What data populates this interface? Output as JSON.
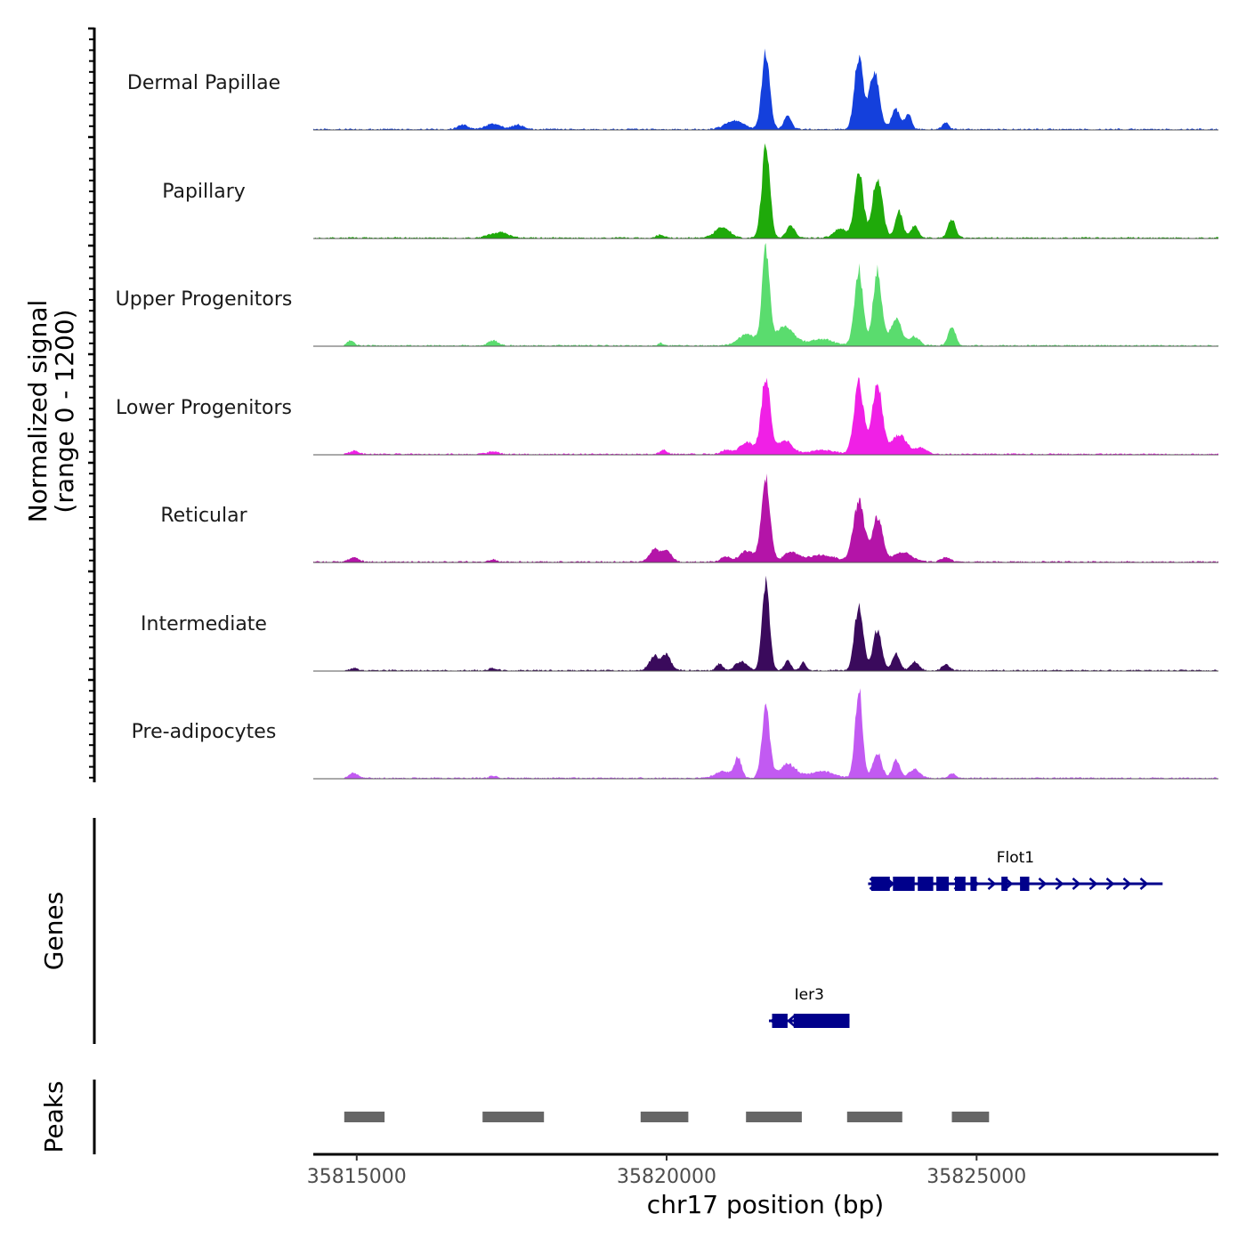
{
  "chart_data": {
    "type": "area",
    "chrom": "chr17",
    "xlim": [
      35814300,
      35828900
    ],
    "ylim": [
      0,
      1200
    ],
    "xlabel": "chr17 position (bp)",
    "ylabel_line1": "Normalized signal",
    "ylabel_line2": "(range 0 - 1200)",
    "x_ticks": [
      35815000,
      35820000,
      35825000
    ],
    "x_tick_labels": [
      "35815000",
      "35820000",
      "35825000"
    ],
    "baseline_noise": 18,
    "series": [
      {
        "name": "Dermal Papillae",
        "color": "#1440DC",
        "start": 35814300,
        "peaks": [
          {
            "center": 35816700,
            "width": 80,
            "height": 60
          },
          {
            "center": 35817200,
            "width": 120,
            "height": 70
          },
          {
            "center": 35817600,
            "width": 100,
            "height": 55
          },
          {
            "center": 35821100,
            "width": 150,
            "height": 110
          },
          {
            "center": 35821600,
            "width": 65,
            "height": 1000
          },
          {
            "center": 35821950,
            "width": 60,
            "height": 180
          },
          {
            "center": 35823100,
            "width": 70,
            "height": 930
          },
          {
            "center": 35823350,
            "width": 80,
            "height": 740
          },
          {
            "center": 35823700,
            "width": 70,
            "height": 260
          },
          {
            "center": 35823900,
            "width": 50,
            "height": 200
          },
          {
            "center": 35824500,
            "width": 50,
            "height": 90
          }
        ]
      },
      {
        "name": "Papillary",
        "color": "#1FAA0A",
        "start": 35814300,
        "peaks": [
          {
            "center": 35817300,
            "width": 150,
            "height": 70
          },
          {
            "center": 35819900,
            "width": 60,
            "height": 40
          },
          {
            "center": 35820900,
            "width": 120,
            "height": 140
          },
          {
            "center": 35821600,
            "width": 65,
            "height": 1150
          },
          {
            "center": 35822000,
            "width": 70,
            "height": 150
          },
          {
            "center": 35822800,
            "width": 100,
            "height": 120
          },
          {
            "center": 35823100,
            "width": 70,
            "height": 870
          },
          {
            "center": 35823400,
            "width": 80,
            "height": 760
          },
          {
            "center": 35823750,
            "width": 60,
            "height": 330
          },
          {
            "center": 35824000,
            "width": 60,
            "height": 160
          },
          {
            "center": 35824600,
            "width": 60,
            "height": 240
          }
        ]
      },
      {
        "name": "Upper Progenitors",
        "color": "#5ADC6E",
        "start": 35814800,
        "peaks": [
          {
            "center": 35814900,
            "width": 60,
            "height": 60
          },
          {
            "center": 35817200,
            "width": 80,
            "height": 65
          },
          {
            "center": 35819900,
            "width": 40,
            "height": 35
          },
          {
            "center": 35821300,
            "width": 150,
            "height": 140
          },
          {
            "center": 35821600,
            "width": 60,
            "height": 1180
          },
          {
            "center": 35821900,
            "width": 150,
            "height": 240
          },
          {
            "center": 35822500,
            "width": 200,
            "height": 80
          },
          {
            "center": 35823100,
            "width": 70,
            "height": 960
          },
          {
            "center": 35823400,
            "width": 70,
            "height": 960
          },
          {
            "center": 35823700,
            "width": 90,
            "height": 340
          },
          {
            "center": 35824000,
            "width": 80,
            "height": 110
          },
          {
            "center": 35824600,
            "width": 60,
            "height": 240
          }
        ]
      },
      {
        "name": "Lower Progenitors",
        "color": "#F020E6",
        "start": 35814800,
        "peaks": [
          {
            "center": 35814950,
            "width": 80,
            "height": 40
          },
          {
            "center": 35817200,
            "width": 80,
            "height": 40
          },
          {
            "center": 35819950,
            "width": 60,
            "height": 55
          },
          {
            "center": 35820950,
            "width": 70,
            "height": 50
          },
          {
            "center": 35821300,
            "width": 130,
            "height": 150
          },
          {
            "center": 35821600,
            "width": 70,
            "height": 980
          },
          {
            "center": 35821900,
            "width": 120,
            "height": 180
          },
          {
            "center": 35822500,
            "width": 200,
            "height": 55
          },
          {
            "center": 35823100,
            "width": 80,
            "height": 900
          },
          {
            "center": 35823400,
            "width": 80,
            "height": 910
          },
          {
            "center": 35823750,
            "width": 120,
            "height": 250
          },
          {
            "center": 35824100,
            "width": 90,
            "height": 80
          }
        ]
      },
      {
        "name": "Reticular",
        "color": "#B414A8",
        "start": 35814300,
        "peaks": [
          {
            "center": 35814950,
            "width": 80,
            "height": 55
          },
          {
            "center": 35817200,
            "width": 60,
            "height": 30
          },
          {
            "center": 35819800,
            "width": 80,
            "height": 160
          },
          {
            "center": 35820000,
            "width": 80,
            "height": 140
          },
          {
            "center": 35820950,
            "width": 70,
            "height": 70
          },
          {
            "center": 35821300,
            "width": 120,
            "height": 140
          },
          {
            "center": 35821600,
            "width": 70,
            "height": 1050
          },
          {
            "center": 35822000,
            "width": 120,
            "height": 120
          },
          {
            "center": 35822500,
            "width": 220,
            "height": 90
          },
          {
            "center": 35823100,
            "width": 90,
            "height": 760
          },
          {
            "center": 35823400,
            "width": 80,
            "height": 580
          },
          {
            "center": 35823800,
            "width": 150,
            "height": 120
          },
          {
            "center": 35824500,
            "width": 80,
            "height": 50
          }
        ]
      },
      {
        "name": "Intermediate",
        "color": "#3A0A5C",
        "start": 35814800,
        "peaks": [
          {
            "center": 35814950,
            "width": 60,
            "height": 30
          },
          {
            "center": 35817200,
            "width": 60,
            "height": 30
          },
          {
            "center": 35819800,
            "width": 80,
            "height": 180
          },
          {
            "center": 35820000,
            "width": 70,
            "height": 200
          },
          {
            "center": 35820850,
            "width": 50,
            "height": 90
          },
          {
            "center": 35821200,
            "width": 100,
            "height": 110
          },
          {
            "center": 35821600,
            "width": 60,
            "height": 1150
          },
          {
            "center": 35821950,
            "width": 50,
            "height": 130
          },
          {
            "center": 35822200,
            "width": 40,
            "height": 110
          },
          {
            "center": 35823100,
            "width": 70,
            "height": 840
          },
          {
            "center": 35823400,
            "width": 70,
            "height": 520
          },
          {
            "center": 35823700,
            "width": 60,
            "height": 220
          },
          {
            "center": 35824000,
            "width": 70,
            "height": 110
          },
          {
            "center": 35824500,
            "width": 60,
            "height": 80
          }
        ]
      },
      {
        "name": "Pre-adipocytes",
        "color": "#C25AF2",
        "start": 35814800,
        "peaks": [
          {
            "center": 35814950,
            "width": 70,
            "height": 65
          },
          {
            "center": 35817200,
            "width": 60,
            "height": 25
          },
          {
            "center": 35820900,
            "width": 120,
            "height": 90
          },
          {
            "center": 35821150,
            "width": 60,
            "height": 250
          },
          {
            "center": 35821600,
            "width": 65,
            "height": 870
          },
          {
            "center": 35821950,
            "width": 130,
            "height": 180
          },
          {
            "center": 35822500,
            "width": 200,
            "height": 90
          },
          {
            "center": 35823100,
            "width": 60,
            "height": 1150
          },
          {
            "center": 35823400,
            "width": 70,
            "height": 330
          },
          {
            "center": 35823700,
            "width": 60,
            "height": 240
          },
          {
            "center": 35824000,
            "width": 90,
            "height": 110
          },
          {
            "center": 35824600,
            "width": 60,
            "height": 60
          }
        ]
      }
    ],
    "genes": {
      "track_label": "Genes",
      "color": "#00008B",
      "items": [
        {
          "name": "Flot1",
          "strand": "+",
          "start": 35823250,
          "end": 35828000,
          "exons": [
            [
              35823300,
              35823600
            ],
            [
              35823650,
              35824000
            ],
            [
              35824050,
              35824300
            ],
            [
              35824350,
              35824550
            ],
            [
              35824650,
              35824820
            ],
            [
              35824900,
              35825000
            ],
            [
              35825400,
              35825500
            ],
            [
              35825700,
              35825850
            ]
          ]
        },
        {
          "name": "Ier3",
          "strand": "-",
          "start": 35821650,
          "end": 35822950,
          "exons": [
            [
              35821700,
              35821950
            ],
            [
              35822050,
              35822950
            ]
          ]
        }
      ]
    },
    "peaks": {
      "track_label": "Peaks",
      "color": "#666666",
      "regions": [
        [
          35814800,
          35815450
        ],
        [
          35817030,
          35818020
        ],
        [
          35819580,
          35820350
        ],
        [
          35821280,
          35822180
        ],
        [
          35822910,
          35823800
        ],
        [
          35824600,
          35825200
        ]
      ]
    }
  }
}
